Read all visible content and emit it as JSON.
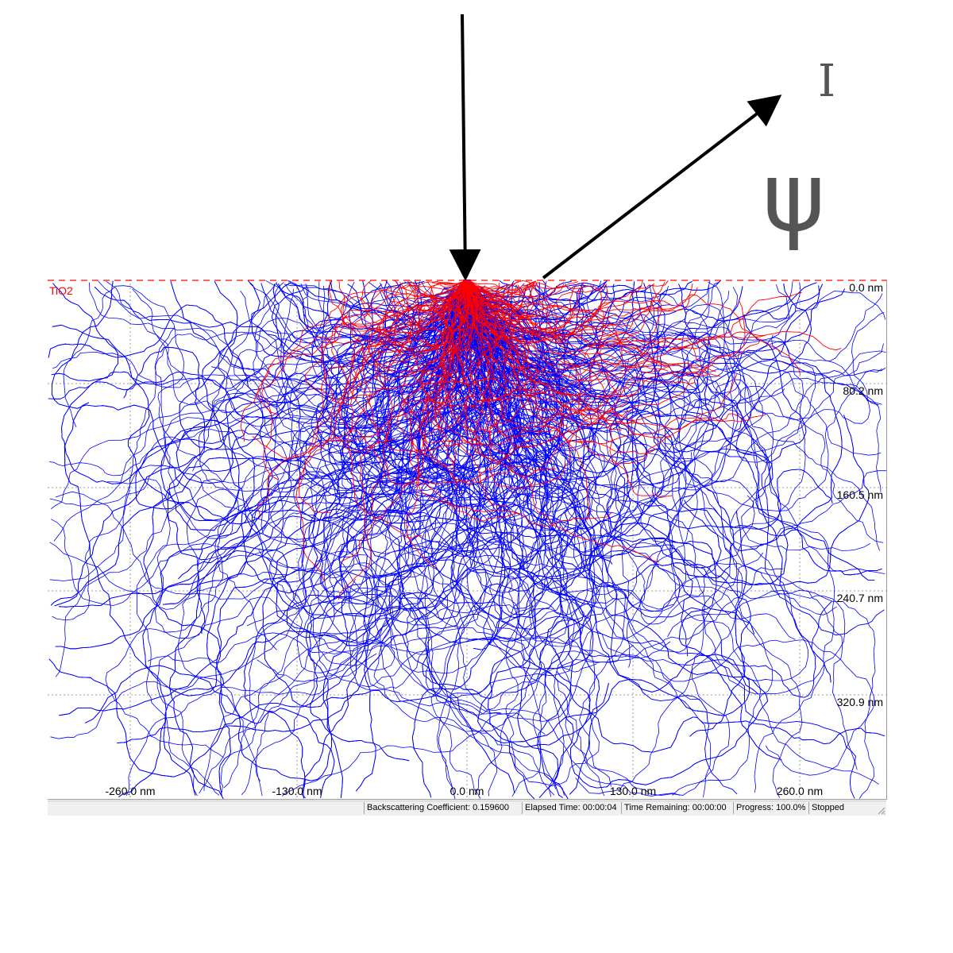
{
  "figure": {
    "intensity_symbol": "I",
    "angle_symbol": "ψ",
    "layer_label": "TiO2",
    "colors": {
      "backscattered": "#ff0000",
      "absorbed": "#0000ff",
      "arrow": "#000000",
      "symbol": "#555555",
      "grid": "#999999"
    }
  },
  "plot": {
    "y_tick_labels": [
      "0.0 nm",
      "80.2 nm",
      "160.5 nm",
      "240.7 nm",
      "320.9 nm"
    ],
    "x_tick_labels": [
      "-260.0 nm",
      "-130.0 nm",
      "0.0 nm",
      "130.0 nm",
      "260.0 nm"
    ],
    "x_tick_values_nm": [
      -260,
      -130,
      0,
      130,
      260
    ],
    "y_tick_values_nm": [
      0,
      80.2,
      160.5,
      240.7,
      320.9
    ]
  },
  "status_bar": {
    "backscattering": "Backscattering Coefficient: 0.159600",
    "elapsed": "Elapsed Time: 00:00:04",
    "remaining": "Time Remaining: 00:00:00",
    "progress": "Progress: 100.0%",
    "state": "Stopped"
  }
}
